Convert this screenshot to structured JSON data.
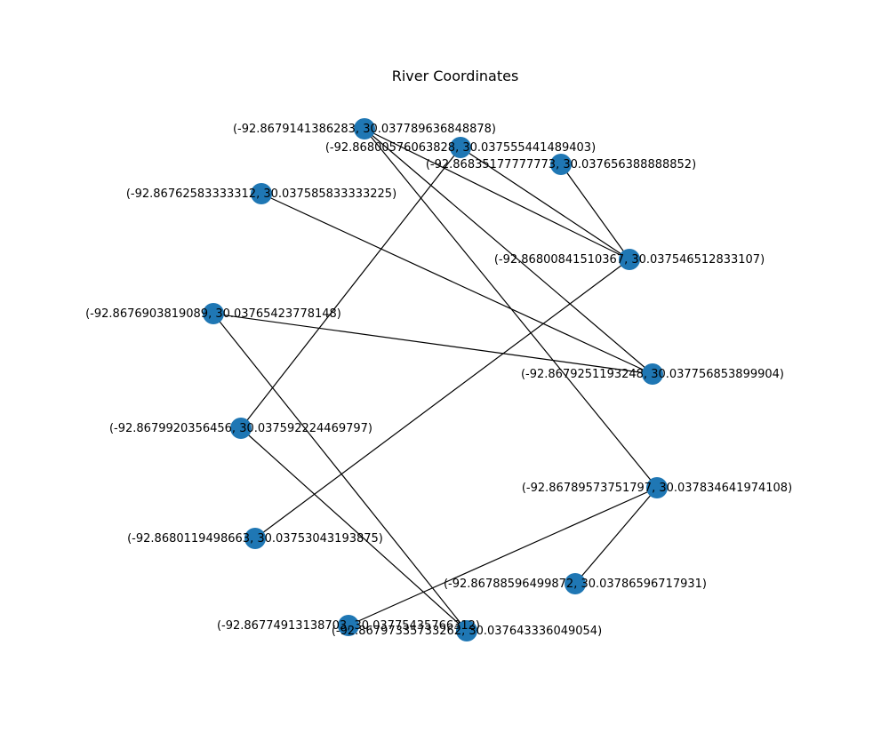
{
  "figure": {
    "title": "River Coordinates"
  },
  "colors": {
    "node": "#1f77b4",
    "edge": "#000000",
    "label": "#000000",
    "background": "#ffffff"
  },
  "graph": {
    "nodes": [
      {
        "id": "n1",
        "label": "(-92.8679141386283, 30.037789636848878)"
      },
      {
        "id": "n2",
        "label": "(-92.86800576063828, 30.037555441489403)"
      },
      {
        "id": "n3",
        "label": "(-92.86835177777773, 30.037656388888852)"
      },
      {
        "id": "n4",
        "label": "(-92.86762583333312, 30.037585833333225)"
      },
      {
        "id": "n5",
        "label": "(-92.86800841510367, 30.037546512833107)"
      },
      {
        "id": "n6",
        "label": "(-92.8676903819089, 30.03765423778148)"
      },
      {
        "id": "n7",
        "label": "(-92.8679251193248, 30.037756853899904)"
      },
      {
        "id": "n8",
        "label": "(-92.8679920356456, 30.037592224469797)"
      },
      {
        "id": "n9",
        "label": "(-92.86789573751797, 30.037834641974108)"
      },
      {
        "id": "n10",
        "label": "(-92.8680119498663, 30.03753043193875)"
      },
      {
        "id": "n11",
        "label": "(-92.86788596499872, 30.03786596717931)"
      },
      {
        "id": "n12",
        "label": "(-92.86774913138703, 30.03775435766312)"
      },
      {
        "id": "n13",
        "label": "(-92.86797335733262, 30.037643336049054)"
      }
    ],
    "edges": [
      [
        "n1",
        "n5"
      ],
      [
        "n1",
        "n7"
      ],
      [
        "n2",
        "n5"
      ],
      [
        "n2",
        "n8"
      ],
      [
        "n3",
        "n5"
      ],
      [
        "n4",
        "n7"
      ],
      [
        "n6",
        "n7"
      ],
      [
        "n1",
        "n9"
      ],
      [
        "n6",
        "n13"
      ],
      [
        "n8",
        "n13"
      ],
      [
        "n10",
        "n5"
      ],
      [
        "n9",
        "n11"
      ],
      [
        "n9",
        "n12"
      ]
    ]
  }
}
